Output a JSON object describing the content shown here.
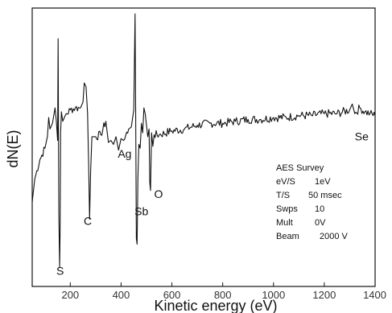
{
  "chart_data": {
    "type": "line",
    "title": "",
    "xlabel": "Kinetic energy (eV)",
    "ylabel": "dN(E)",
    "xlim": [
      50,
      1400
    ],
    "xticks": [
      200,
      400,
      600,
      800,
      1000,
      1200,
      1400
    ],
    "xtick_labels": [
      "200",
      "400",
      "600",
      "800",
      "1000",
      "1200",
      "1400"
    ],
    "ylim": [
      -7,
      7.5
    ],
    "y_ticks_shown": false,
    "grid": false,
    "series": [
      {
        "x": [
          50,
          60,
          80,
          100,
          110,
          115,
          120,
          130,
          140,
          145,
          150,
          152,
          155,
          158,
          160,
          162,
          165,
          170,
          180,
          200,
          220,
          240,
          250,
          255,
          262,
          268,
          272,
          276,
          280,
          285,
          300,
          320,
          340,
          350,
          360,
          370,
          380,
          390,
          400,
          410,
          430,
          440,
          450,
          455,
          458,
          460,
          463,
          466,
          470,
          475,
          480,
          485,
          490,
          495,
          500,
          505,
          510,
          513,
          516,
          520,
          525,
          530,
          550,
          600,
          650,
          700,
          750,
          800,
          850,
          900,
          950,
          1000,
          1050,
          1100,
          1150,
          1200,
          1250,
          1300,
          1310,
          1320,
          1340,
          1360,
          1380,
          1400
        ],
        "y": [
          -2.6,
          -1.4,
          -0.4,
          0.2,
          0.8,
          1.8,
          1.2,
          1.5,
          2.3,
          1.6,
          0.6,
          5.9,
          -3.2,
          -6.0,
          -4.0,
          1.0,
          2.1,
          1.6,
          1.9,
          2.2,
          2.3,
          2.3,
          2.6,
          3.6,
          3.4,
          2.0,
          -0.6,
          -3.5,
          -1.0,
          0.8,
          0.8,
          0.9,
          1.6,
          0.5,
          0.6,
          0.4,
          0.8,
          0.1,
          0.7,
          0.6,
          1.2,
          1.3,
          2.2,
          7.2,
          1.0,
          -4.5,
          -4.8,
          -1.4,
          0.4,
          0.2,
          1.5,
          1.0,
          2.3,
          2.0,
          1.4,
          0.8,
          1.2,
          -1.6,
          -2.0,
          1.0,
          0.3,
          0.9,
          0.9,
          1.1,
          1.2,
          1.4,
          1.5,
          1.5,
          1.6,
          1.7,
          1.7,
          1.8,
          1.8,
          1.9,
          1.9,
          2.0,
          2.0,
          2.2,
          2.5,
          2.0,
          2.3,
          2.1,
          2.0,
          1.9
        ]
      }
    ],
    "peak_labels": [
      {
        "text": "S",
        "x": 145,
        "y": -6.4
      },
      {
        "text": "C",
        "x": 253,
        "y": -3.8
      },
      {
        "text": "Ag",
        "x": 387,
        "y": -0.3
      },
      {
        "text": "Sb",
        "x": 453,
        "y": -3.3
      },
      {
        "text": "O",
        "x": 530,
        "y": -2.4
      },
      {
        "text": "Se",
        "x": 1320,
        "y": 0.6
      }
    ],
    "info_box": [
      {
        "key": "AES Survey",
        "value": ""
      },
      {
        "key": "eV/S",
        "value": "1eV"
      },
      {
        "key": "T/S",
        "value": "50 msec"
      },
      {
        "key": "Swps",
        "value": "10"
      },
      {
        "key": "Mult",
        "value": "0V"
      },
      {
        "key": "Beam",
        "value": "2000 V"
      }
    ],
    "colors": {
      "line": "#111111",
      "frame": "#111111",
      "background": "#ffffff"
    }
  }
}
